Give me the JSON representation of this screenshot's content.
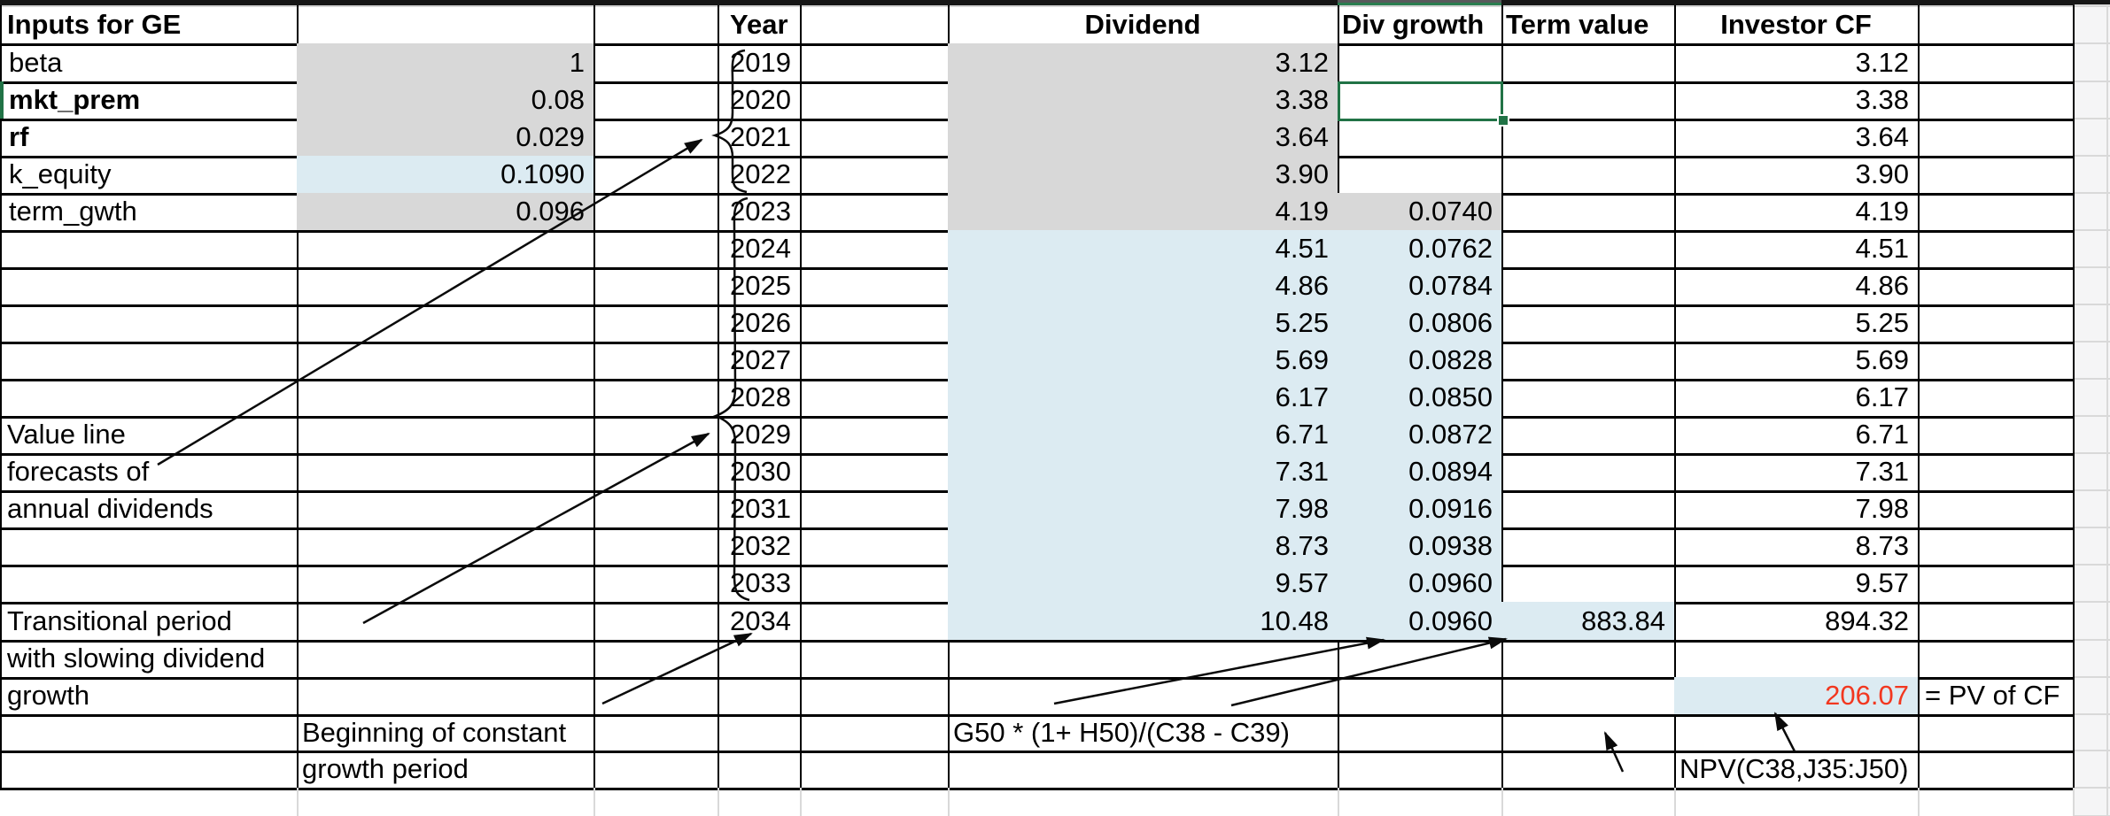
{
  "sheet": {
    "headers": {
      "inputs": "Inputs for GE",
      "year": "Year",
      "dividend": "Dividend",
      "div_growth": "Div growth",
      "term_value": "Term value",
      "investor_cf": "Investor CF"
    },
    "inputs": [
      {
        "label": "beta",
        "bold": false,
        "value": "1",
        "fill": "gray"
      },
      {
        "label": "mkt_prem",
        "bold": true,
        "value": "0.08",
        "fill": "gray"
      },
      {
        "label": "rf",
        "bold": true,
        "value": "0.029",
        "fill": "gray"
      },
      {
        "label": "k_equity",
        "bold": false,
        "value": "0.1090",
        "fill": "blue"
      },
      {
        "label": "term_gwth",
        "bold": false,
        "value": "0.096",
        "fill": "gray"
      }
    ],
    "years": [
      {
        "y": "2019",
        "div": "3.12",
        "div_fill": "gray",
        "g": "",
        "g_fill": "",
        "tv": "",
        "cf": "3.12"
      },
      {
        "y": "2020",
        "div": "3.38",
        "div_fill": "gray",
        "g": "",
        "g_fill": "",
        "tv": "",
        "cf": "3.38"
      },
      {
        "y": "2021",
        "div": "3.64",
        "div_fill": "gray",
        "g": "",
        "g_fill": "",
        "tv": "",
        "cf": "3.64"
      },
      {
        "y": "2022",
        "div": "3.90",
        "div_fill": "gray",
        "g": "",
        "g_fill": "",
        "tv": "",
        "cf": "3.90"
      },
      {
        "y": "2023",
        "div": "4.19",
        "div_fill": "gray",
        "g": "0.0740",
        "g_fill": "gray",
        "tv": "",
        "cf": "4.19"
      },
      {
        "y": "2024",
        "div": "4.51",
        "div_fill": "blue",
        "g": "0.0762",
        "g_fill": "blue",
        "tv": "",
        "cf": "4.51"
      },
      {
        "y": "2025",
        "div": "4.86",
        "div_fill": "blue",
        "g": "0.0784",
        "g_fill": "blue",
        "tv": "",
        "cf": "4.86"
      },
      {
        "y": "2026",
        "div": "5.25",
        "div_fill": "blue",
        "g": "0.0806",
        "g_fill": "blue",
        "tv": "",
        "cf": "5.25"
      },
      {
        "y": "2027",
        "div": "5.69",
        "div_fill": "blue",
        "g": "0.0828",
        "g_fill": "blue",
        "tv": "",
        "cf": "5.69"
      },
      {
        "y": "2028",
        "div": "6.17",
        "div_fill": "blue",
        "g": "0.0850",
        "g_fill": "blue",
        "tv": "",
        "cf": "6.17"
      },
      {
        "y": "2029",
        "div": "6.71",
        "div_fill": "blue",
        "g": "0.0872",
        "g_fill": "blue",
        "tv": "",
        "cf": "6.71"
      },
      {
        "y": "2030",
        "div": "7.31",
        "div_fill": "blue",
        "g": "0.0894",
        "g_fill": "blue",
        "tv": "",
        "cf": "7.31"
      },
      {
        "y": "2031",
        "div": "7.98",
        "div_fill": "blue",
        "g": "0.0916",
        "g_fill": "blue",
        "tv": "",
        "cf": "7.98"
      },
      {
        "y": "2032",
        "div": "8.73",
        "div_fill": "blue",
        "g": "0.0938",
        "g_fill": "blue",
        "tv": "",
        "cf": "8.73"
      },
      {
        "y": "2033",
        "div": "9.57",
        "div_fill": "blue",
        "g": "0.0960",
        "g_fill": "blue",
        "tv": "",
        "cf": "9.57"
      },
      {
        "y": "2034",
        "div": "10.48",
        "div_fill": "blue",
        "g": "0.0960",
        "g_fill": "blue",
        "tv": "883.84",
        "tv_fill": "blue",
        "cf": "894.32"
      }
    ],
    "notes": {
      "value_line": [
        "Value line",
        "forecasts of",
        "annual dividends"
      ],
      "transitional": [
        "Transitional period",
        "with slowing dividend",
        "growth"
      ],
      "constant": [
        "Beginning of constant",
        "growth period"
      ]
    },
    "formulas": {
      "term_value_formula": "G50 * (1+ H50)/(C38 - C39)",
      "npv_formula": "NPV(C38,J35:J50)",
      "pv_value": "206.07",
      "pv_label": "= PV of CF"
    },
    "colors": {
      "gray_fill": "#d8d8d8",
      "blue_fill": "#dcebf2",
      "red_text": "#f2371f",
      "selection_green": "#217346",
      "grid": "#000000"
    }
  }
}
